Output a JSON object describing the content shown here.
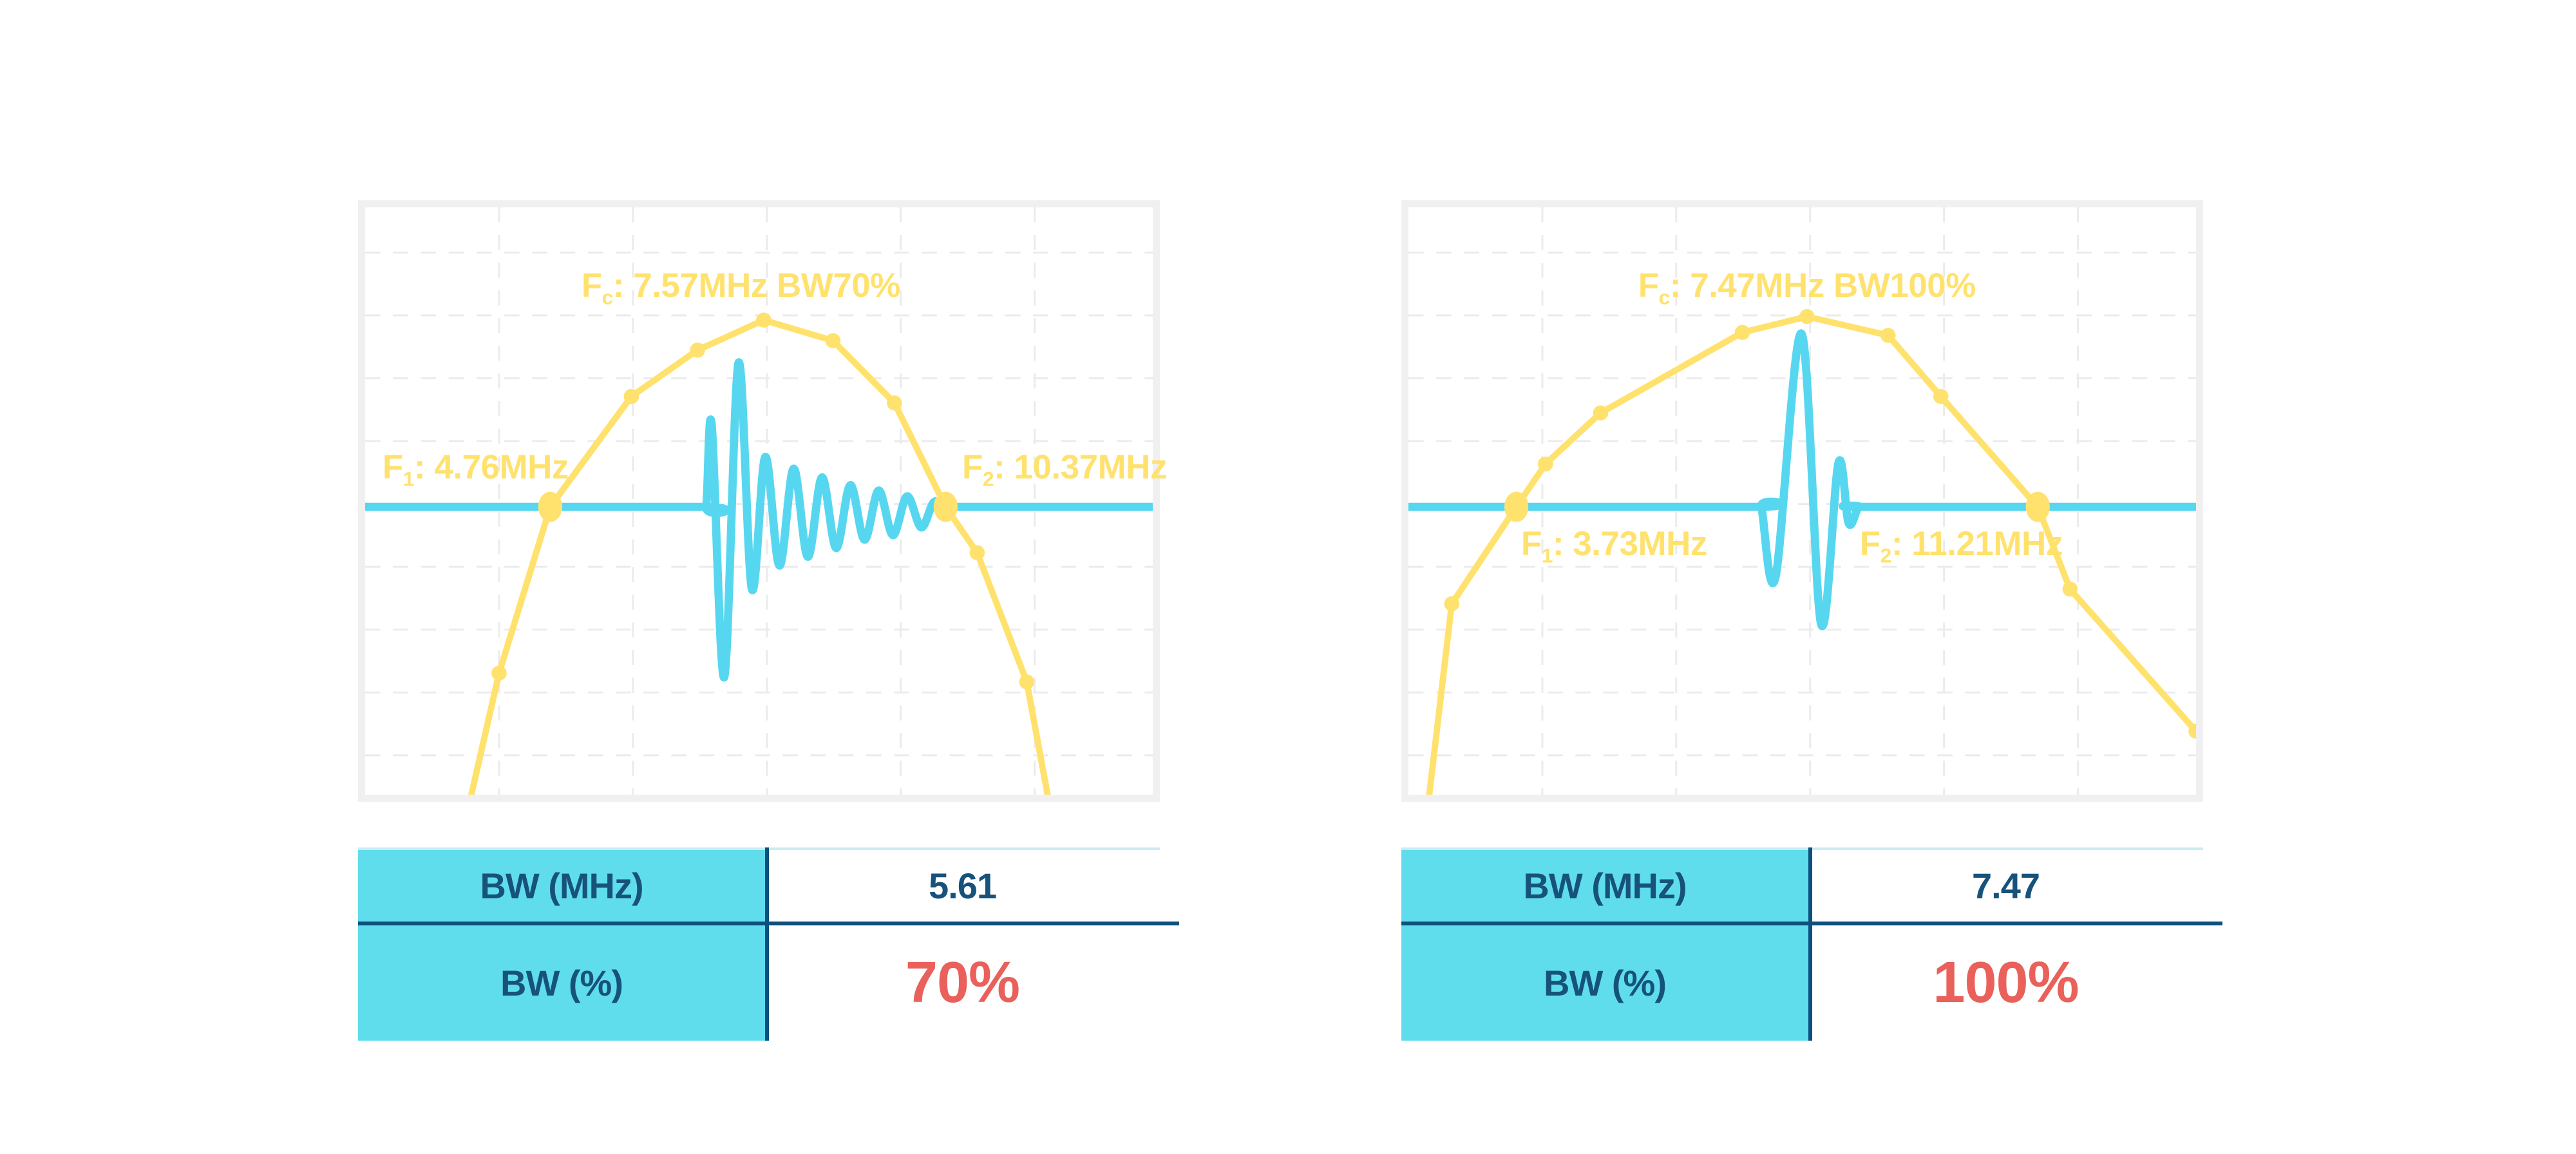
{
  "page": {
    "background": "#ffffff"
  },
  "theme": {
    "yellow": "#FFE26E",
    "cyan": "#57D7EF",
    "table_cyan": "#5FDDEC",
    "dark_blue": "#17527B",
    "rule": "#0D4F7D",
    "red": "#E9615A",
    "frame": "#F0F0F0",
    "grid": "#EBEBEB",
    "topline": "#CBEBF3"
  },
  "chart_data": [
    {
      "type": "line",
      "name": "pulse-spectrum-bw70",
      "title": "",
      "fc_mhz": 7.57,
      "f1_mhz": 4.76,
      "f2_mhz": 10.37,
      "bw_mhz": 5.61,
      "bw_percent": 70,
      "axes": {
        "x_visible": false,
        "y_visible": false,
        "grid": true,
        "grid_style": "dashed"
      },
      "annotations": {
        "fc": {
          "f": "F",
          "sub": "c",
          "rest": ": 7.57MHz BW70%"
        },
        "f1": {
          "f": "F",
          "sub": "1",
          "rest": ": 4.76MHz"
        },
        "f2": {
          "f": "F",
          "sub": "2",
          "rest": ": 10.37MHz"
        }
      },
      "grid": {
        "v_fracs": [
          0.17,
          0.34,
          0.51,
          0.68,
          0.85
        ],
        "h_fracs": [
          0.077,
          0.184,
          0.291,
          0.398,
          0.505,
          0.612,
          0.719,
          0.826,
          0.933
        ]
      },
      "series": [
        {
          "name": "spectrum",
          "role": "frequency-spectrum-with-markers",
          "color_ref": "yellow",
          "line_width": 10,
          "marker_r": 12,
          "big_marker": {
            "rx": 19,
            "ry": 24
          },
          "points": [
            {
              "x": 12.8,
              "y": 104,
              "marker": "none"
            },
            {
              "x": 17.0,
              "y": 79.3,
              "marker": "small"
            },
            {
              "x": 23.5,
              "y": 51,
              "marker": "big"
            },
            {
              "x": 33.8,
              "y": 32.2,
              "marker": "small"
            },
            {
              "x": 42.2,
              "y": 24.3,
              "marker": "small"
            },
            {
              "x": 50.6,
              "y": 19.2,
              "marker": "small"
            },
            {
              "x": 59.4,
              "y": 22.7,
              "marker": "small"
            },
            {
              "x": 67.2,
              "y": 33.3,
              "marker": "small"
            },
            {
              "x": 73.7,
              "y": 51,
              "marker": "big"
            },
            {
              "x": 77.7,
              "y": 58.8,
              "marker": "small"
            },
            {
              "x": 84.0,
              "y": 80.8,
              "marker": "small"
            },
            {
              "x": 87.2,
              "y": 104,
              "marker": "none"
            }
          ]
        },
        {
          "name": "echo-pulse",
          "role": "time-domain-pulse-on-threshold-line",
          "color_ref": "cyan",
          "line_width": 13,
          "baseline_y": 51,
          "points": [
            [
              0,
              51
            ],
            [
              42.5,
              51
            ],
            [
              43.3,
              51
            ],
            [
              44.0,
              37
            ],
            [
              45.6,
              80
            ],
            [
              47.4,
              26.5
            ],
            [
              49.1,
              65
            ],
            [
              50.8,
              42.5
            ],
            [
              52.6,
              61
            ],
            [
              54.4,
              44.5
            ],
            [
              56.2,
              59.5
            ],
            [
              58.0,
              46.0
            ],
            [
              59.8,
              58.0
            ],
            [
              61.6,
              47.3
            ],
            [
              63.4,
              56.6
            ],
            [
              65.2,
              48.2
            ],
            [
              67.0,
              55.8
            ],
            [
              68.8,
              49.2
            ],
            [
              70.6,
              54.5
            ],
            [
              72.2,
              50.2
            ],
            [
              73.7,
              51
            ],
            [
              75.5,
              51
            ],
            [
              100,
              51
            ]
          ]
        }
      ],
      "table": {
        "rows": [
          {
            "label": "BW (MHz)",
            "value": "5.61",
            "style": "plain"
          },
          {
            "label": "BW (%)",
            "value": "70%",
            "style": "accent"
          }
        ]
      }
    },
    {
      "type": "line",
      "name": "pulse-spectrum-bw100",
      "title": "",
      "fc_mhz": 7.47,
      "f1_mhz": 3.73,
      "f2_mhz": 11.21,
      "bw_mhz": 7.47,
      "bw_percent": 100,
      "axes": {
        "x_visible": false,
        "y_visible": false,
        "grid": true,
        "grid_style": "dashed"
      },
      "annotations": {
        "fc": {
          "f": "F",
          "sub": "c",
          "rest": ": 7.47MHz BW100%"
        },
        "f1": {
          "f": "F",
          "sub": "1",
          "rest": ": 3.73MHz"
        },
        "f2": {
          "f": "F",
          "sub": "2",
          "rest": ": 11.21MHz"
        }
      },
      "grid": {
        "v_fracs": [
          0.17,
          0.34,
          0.51,
          0.68,
          0.85
        ],
        "h_fracs": [
          0.077,
          0.184,
          0.291,
          0.398,
          0.505,
          0.612,
          0.719,
          0.826,
          0.933
        ]
      },
      "series": [
        {
          "name": "spectrum",
          "role": "frequency-spectrum-with-markers",
          "color_ref": "yellow",
          "line_width": 10,
          "marker_r": 12,
          "big_marker": {
            "rx": 19,
            "ry": 24
          },
          "points": [
            {
              "x": 2.3,
              "y": 104,
              "marker": "none"
            },
            {
              "x": 5.5,
              "y": 67.5,
              "marker": "small"
            },
            {
              "x": 13.7,
              "y": 51,
              "marker": "big"
            },
            {
              "x": 17.4,
              "y": 43.7,
              "marker": "small"
            },
            {
              "x": 24.4,
              "y": 35.0,
              "marker": "small"
            },
            {
              "x": 42.4,
              "y": 21.3,
              "marker": "small"
            },
            {
              "x": 50.6,
              "y": 18.6,
              "marker": "small"
            },
            {
              "x": 60.9,
              "y": 21.8,
              "marker": "small"
            },
            {
              "x": 67.6,
              "y": 32.2,
              "marker": "small"
            },
            {
              "x": 79.9,
              "y": 51,
              "marker": "big"
            },
            {
              "x": 84.0,
              "y": 65.0,
              "marker": "small"
            },
            {
              "x": 100.0,
              "y": 89.2,
              "marker": "small"
            }
          ]
        },
        {
          "name": "echo-pulse",
          "role": "time-domain-pulse-on-threshold-line",
          "color_ref": "cyan",
          "line_width": 13,
          "baseline_y": 51,
          "points": [
            [
              0,
              51
            ],
            [
              44.0,
              51
            ],
            [
              44.8,
              51
            ],
            [
              46.6,
              63
            ],
            [
              49.9,
              21.5
            ],
            [
              52.4,
              71
            ],
            [
              54.6,
              43.5
            ],
            [
              55.9,
              53.8
            ],
            [
              57.2,
              51
            ],
            [
              58.6,
              51
            ],
            [
              100,
              51
            ]
          ]
        }
      ],
      "table": {
        "rows": [
          {
            "label": "BW (MHz)",
            "value": "7.47",
            "style": "plain"
          },
          {
            "label": "BW (%)",
            "value": "100%",
            "style": "accent"
          }
        ]
      }
    }
  ]
}
